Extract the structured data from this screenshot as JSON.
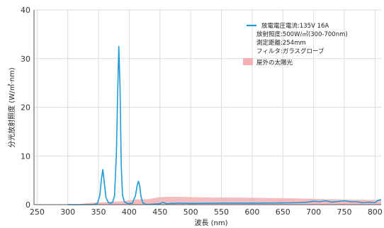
{
  "chart_data": {
    "type": "line",
    "title": "",
    "xlabel": "波長 (nm)",
    "ylabel": "分光放射照度 (W/㎡·nm)",
    "xlim": [
      245,
      810
    ],
    "ylim": [
      0,
      40
    ],
    "x_ticks": [
      250,
      300,
      350,
      400,
      450,
      500,
      550,
      600,
      650,
      700,
      750,
      800
    ],
    "y_ticks": [
      0,
      10,
      20,
      30,
      40
    ],
    "grid": true,
    "legend_position": "top-right",
    "legend": {
      "line1": "放電電圧電流:135V  16A",
      "line2": "放射照度:500W/㎡(300-700nm)",
      "line3": "測定距離:254mm",
      "line4": "フィルタ:ガラスグローブ",
      "area_label": "屋外の太陽光"
    },
    "series": [
      {
        "name": "放電電圧電流:135V  16A",
        "kind": "line",
        "color": "#1e9bd7",
        "x": [
          300,
          340,
          348,
          352,
          355,
          357,
          359,
          362,
          366,
          370,
          373,
          376,
          379,
          381,
          383,
          385,
          387,
          389,
          392,
          396,
          400,
          405,
          410,
          413,
          415,
          417,
          419,
          422,
          426,
          430,
          440,
          450,
          455,
          460,
          480,
          500,
          550,
          600,
          650,
          670,
          690,
          700,
          710,
          720,
          730,
          750,
          760,
          770,
          780,
          790,
          800,
          805,
          810
        ],
        "values": [
          0,
          0,
          0.2,
          1.8,
          5.5,
          7.2,
          5.0,
          1.5,
          0.4,
          0.3,
          0.5,
          1.8,
          10.0,
          22.0,
          32.5,
          24.0,
          8.0,
          2.0,
          0.6,
          0.3,
          0.2,
          0.3,
          1.8,
          4.0,
          4.8,
          3.8,
          1.8,
          0.4,
          0.1,
          0.05,
          0.1,
          0.2,
          0.5,
          0.2,
          0.3,
          0.25,
          0.3,
          0.3,
          0.35,
          0.4,
          0.5,
          0.7,
          0.6,
          0.8,
          0.5,
          0.8,
          0.6,
          0.6,
          0.4,
          0.5,
          0.4,
          0.9,
          1.0
        ]
      },
      {
        "name": "屋外の太陽光",
        "kind": "area",
        "color": "#f2b0b4",
        "x": [
          295,
          300,
          310,
          320,
          330,
          340,
          350,
          360,
          370,
          380,
          390,
          400,
          410,
          420,
          430,
          440,
          450,
          460,
          480,
          500,
          520,
          550,
          580,
          600,
          630,
          650,
          680,
          700,
          720,
          750,
          780,
          800,
          810
        ],
        "values": [
          0,
          0.02,
          0.05,
          0.1,
          0.3,
          0.4,
          0.45,
          0.5,
          0.6,
          0.65,
          0.7,
          0.9,
          1.05,
          1.1,
          1.1,
          1.35,
          1.55,
          1.6,
          1.6,
          1.55,
          1.5,
          1.45,
          1.45,
          1.42,
          1.35,
          1.32,
          1.25,
          1.2,
          1.12,
          1.05,
          1.0,
          0.95,
          0.95
        ]
      }
    ]
  }
}
